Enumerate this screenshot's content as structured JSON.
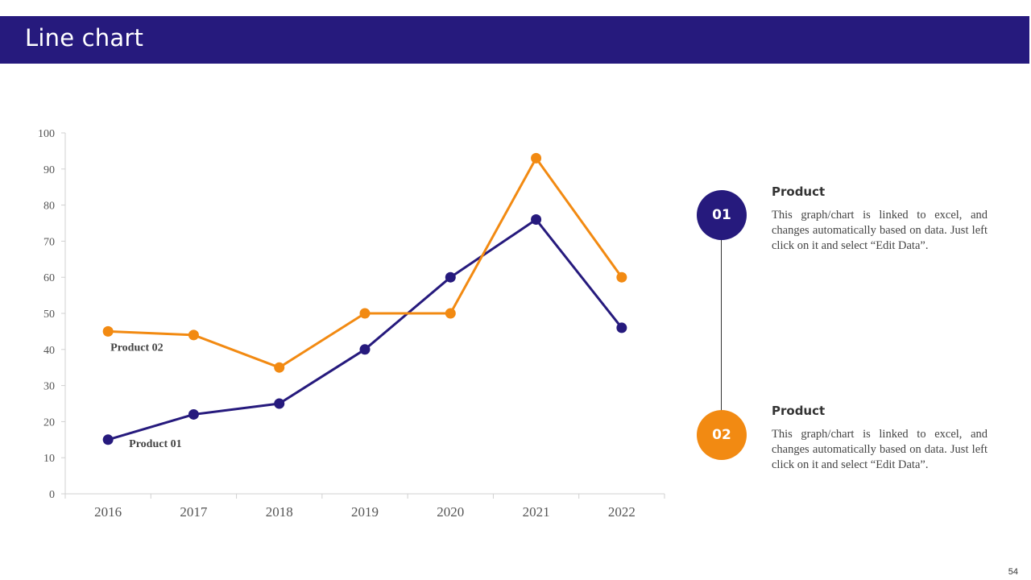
{
  "header": {
    "title": "Line chart"
  },
  "colors": {
    "header_bg": "#261a7d",
    "series1": "#261a7d",
    "series2": "#f28a12"
  },
  "chart_data": {
    "type": "line",
    "title": "",
    "xlabel": "",
    "ylabel": "",
    "categories": [
      "2016",
      "2017",
      "2018",
      "2019",
      "2020",
      "2021",
      "2022"
    ],
    "ylim": [
      0,
      100
    ],
    "yticks": [
      0,
      10,
      20,
      30,
      40,
      50,
      60,
      70,
      80,
      90,
      100
    ],
    "grid": false,
    "series": [
      {
        "name": "Product 01",
        "color": "#261a7d",
        "values": [
          15,
          22,
          25,
          40,
          60,
          76,
          46
        ]
      },
      {
        "name": "Product 02",
        "color": "#f28a12",
        "values": [
          45,
          44,
          35,
          50,
          50,
          93,
          60
        ]
      }
    ]
  },
  "legend": {
    "items": [
      {
        "number": "01",
        "title": "Product",
        "description": "This graph/chart is linked to excel, and changes automatically based on data. Just left click on it and select “Edit Data”."
      },
      {
        "number": "02",
        "title": "Product",
        "description": "This graph/chart is linked to excel, and changes automatically based on data. Just left click on it and select “Edit Data”."
      }
    ]
  },
  "page": {
    "number": "54"
  }
}
